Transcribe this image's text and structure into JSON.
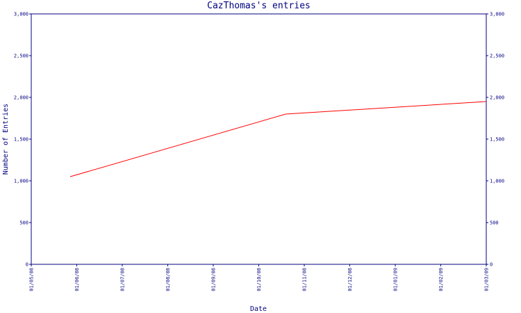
{
  "chart_data": {
    "type": "line",
    "title": "CazThomas's entries",
    "xlabel": "Date",
    "ylabel": "Number of Entries",
    "x_ticks": [
      "01/05/08",
      "01/06/08",
      "01/07/08",
      "01/08/08",
      "01/09/08",
      "01/10/08",
      "01/11/08",
      "01/12/08",
      "01/01/09",
      "01/02/09",
      "01/03/09"
    ],
    "y_ticks": [
      "0",
      "500",
      "1,000",
      "1,500",
      "2,000",
      "2,500",
      "3,000"
    ],
    "ylim": [
      0,
      3000
    ],
    "xlim": [
      "2008-05-01",
      "2009-03-01"
    ],
    "grid": false,
    "series": [
      {
        "color": "#ff0000",
        "points": [
          {
            "x": "2008-05-27",
            "y": 1050
          },
          {
            "x": "2008-10-18",
            "y": 1800
          },
          {
            "x": "2009-03-01",
            "y": 1950
          }
        ]
      }
    ],
    "colors": {
      "axis": "#000080",
      "line": "#ff0000"
    }
  }
}
